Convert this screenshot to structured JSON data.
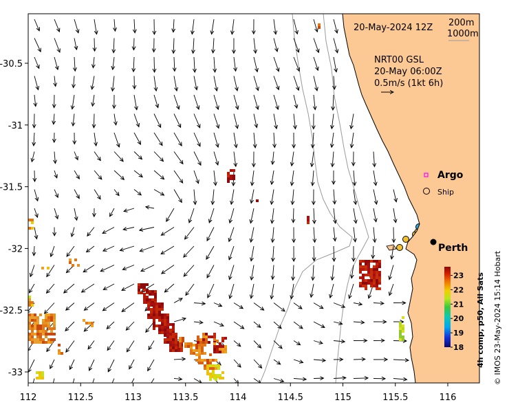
{
  "map": {
    "datetime": "20-May-2024 12Z",
    "contours": [
      "200m",
      "1000m"
    ],
    "current_model": "NRT00 GSL",
    "current_time": "20-May 06:00Z",
    "current_scale": "0.5m/s (1kt 6h)",
    "credit": "© IMOS 23-May-2024 15:14 Hobart",
    "lon_range": [
      112,
      116.3
    ],
    "lat_range": [
      -33.1,
      -30.1
    ],
    "x_ticks": [
      "112",
      "112.5",
      "113",
      "113.5",
      "114",
      "114.5",
      "115",
      "115.5",
      "116"
    ],
    "y_ticks": [
      "-30.5",
      "-31",
      "-31.5",
      "-32",
      "-32.5",
      "-33"
    ],
    "y_tick_values": [
      -30.5,
      -31,
      -31.5,
      -32,
      -32.5,
      -33
    ],
    "x_tick_values": [
      112,
      112.5,
      113,
      113.5,
      114,
      114.5,
      115,
      115.5,
      116
    ],
    "land_color": "#fcc893",
    "legend": {
      "argo_label": "Argo",
      "argo_color": "#ff00ff",
      "ship_label": "Ship"
    },
    "places": [
      {
        "name": "Perth",
        "lon": 115.86,
        "lat": -31.95
      }
    ],
    "colorbar": {
      "title": "4h comp, p50, All Sats",
      "ticks": [
        "23",
        "22",
        "21",
        "20",
        "19",
        "18"
      ],
      "tick_values": [
        23,
        22,
        21,
        20,
        19,
        18
      ],
      "range": [
        18,
        23.6
      ]
    }
  }
}
